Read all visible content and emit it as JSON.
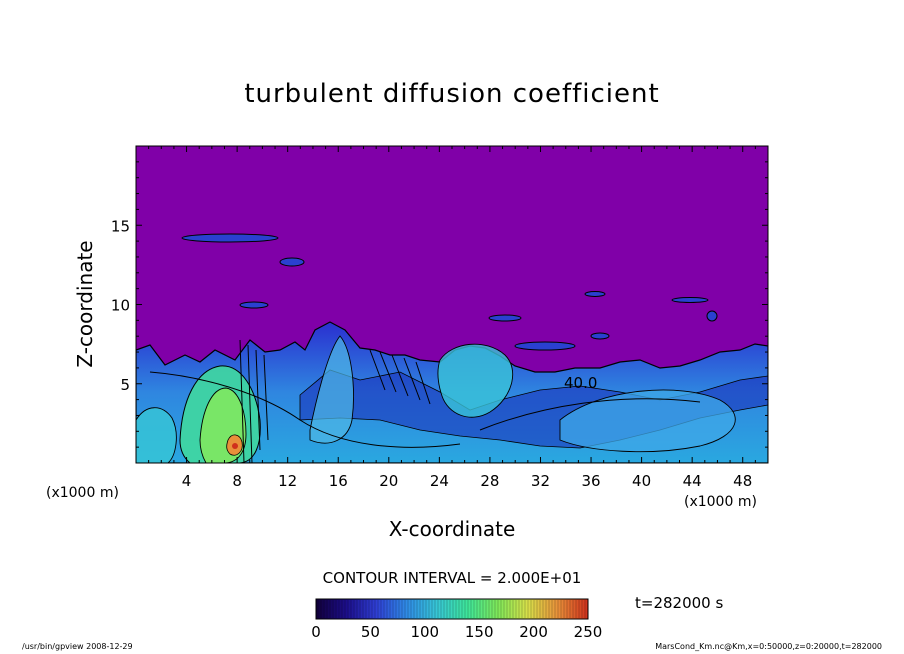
{
  "chart_data": {
    "type": "heatmap",
    "title": "turbulent diffusion coefficient",
    "xlabel": "X-coordinate",
    "ylabel": "Z-coordinate",
    "x_unit": "(x1000 m)",
    "z_unit": "(x1000 m)",
    "xlim": [
      0,
      50
    ],
    "ylim": [
      0,
      20
    ],
    "x_ticks": [
      4,
      8,
      12,
      16,
      20,
      24,
      28,
      32,
      36,
      40,
      44,
      48
    ],
    "y_ticks": [
      5,
      10,
      15
    ],
    "contour_label": "40.0",
    "contour_interval_label": "CONTOUR INTERVAL = 2.000E+01",
    "time_label": "t=282000 s",
    "colorbar": {
      "ticks": [
        0,
        50,
        100,
        150,
        200,
        250
      ],
      "range": [
        0,
        250
      ],
      "colors": [
        "#12003c",
        "#1c0e8a",
        "#2f3fd4",
        "#2f8be6",
        "#37c6d6",
        "#3ee59a",
        "#7ee85a",
        "#d8e04a",
        "#e8903a",
        "#d0301c"
      ]
    },
    "background_color": "#8000a8",
    "footer_left": "/usr/bin/gpview   2008-12-29",
    "footer_right": "MarsCond_Km.nc@Km,x=0:50000,z=0:20000,t=282000"
  }
}
